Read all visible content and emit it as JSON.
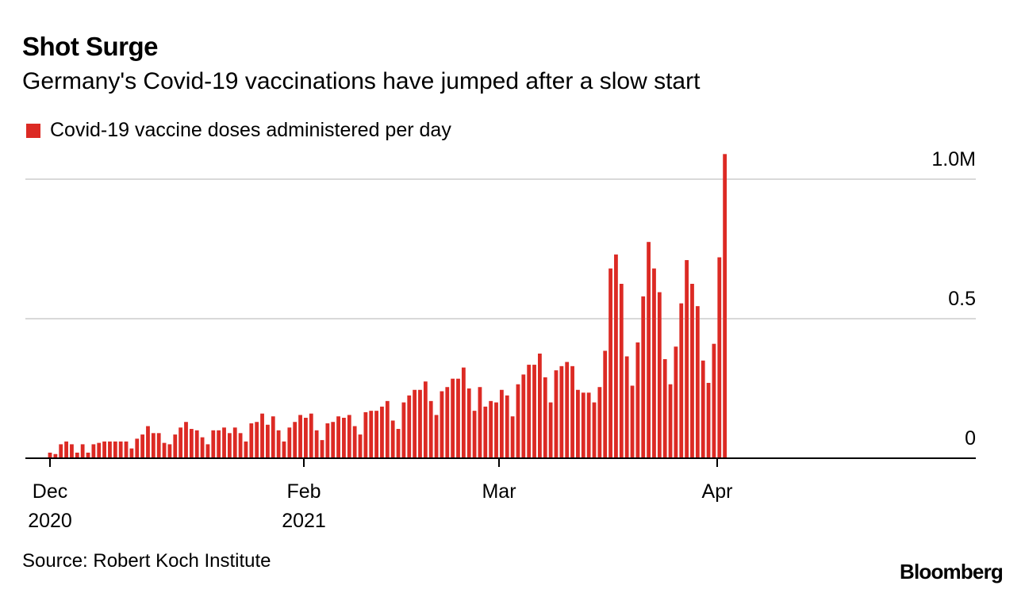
{
  "header": {
    "title": "Shot Surge",
    "subtitle": "Germany's Covid-19 vaccinations have jumped after a slow start"
  },
  "footer": {
    "source": "Source: Robert Koch Institute",
    "brand": "Bloomberg"
  },
  "colors": {
    "bar": "#dc2a24",
    "grid": "#d9d9d9",
    "axis": "#000000"
  },
  "chart_data": {
    "type": "bar",
    "title": "Shot Surge",
    "subtitle": "Germany's Covid-19 vaccinations have jumped after a slow start",
    "legend": [
      "Covid-19 vaccine doses administered per day"
    ],
    "legend_position": "top-left",
    "start_date": "2020-12-27",
    "end_date": "2021-04-28",
    "ylim": [
      0,
      1.05
    ],
    "yunit": "M",
    "yticks": [
      {
        "value": 0,
        "label": "0"
      },
      {
        "value": 0.5,
        "label": "0.5"
      },
      {
        "value": 1.0,
        "label": "1.0M"
      }
    ],
    "xticks": [
      {
        "label": "Dec",
        "sublabel": "2020",
        "date": "2020-12-01"
      },
      {
        "label": "Feb",
        "sublabel": "2021",
        "date": "2021-02-01"
      },
      {
        "label": "Mar",
        "sublabel": "",
        "date": "2021-03-01"
      },
      {
        "label": "Apr",
        "sublabel": "",
        "date": "2021-04-01"
      }
    ],
    "series": [
      {
        "name": "Covid-19 vaccine doses administered per day",
        "values": [
          0.02,
          0.015,
          0.05,
          0.06,
          0.05,
          0.02,
          0.05,
          0.02,
          0.05,
          0.055,
          0.06,
          0.06,
          0.06,
          0.06,
          0.06,
          0.035,
          0.07,
          0.085,
          0.115,
          0.09,
          0.09,
          0.055,
          0.05,
          0.085,
          0.11,
          0.13,
          0.105,
          0.1,
          0.075,
          0.05,
          0.1,
          0.1,
          0.11,
          0.09,
          0.11,
          0.09,
          0.06,
          0.125,
          0.13,
          0.16,
          0.12,
          0.15,
          0.1,
          0.06,
          0.11,
          0.13,
          0.155,
          0.145,
          0.16,
          0.1,
          0.065,
          0.125,
          0.13,
          0.15,
          0.145,
          0.155,
          0.115,
          0.085,
          0.165,
          0.17,
          0.17,
          0.185,
          0.205,
          0.135,
          0.105,
          0.2,
          0.225,
          0.245,
          0.245,
          0.275,
          0.205,
          0.155,
          0.24,
          0.255,
          0.285,
          0.285,
          0.325,
          0.25,
          0.17,
          0.255,
          0.185,
          0.205,
          0.2,
          0.245,
          0.225,
          0.15,
          0.265,
          0.3,
          0.335,
          0.335,
          0.375,
          0.29,
          0.2,
          0.315,
          0.33,
          0.345,
          0.33,
          0.245,
          0.235,
          0.235,
          0.2,
          0.255,
          0.385,
          0.68,
          0.73,
          0.625,
          0.365,
          0.26,
          0.415,
          0.58,
          0.775,
          0.68,
          0.595,
          0.355,
          0.265,
          0.4,
          0.555,
          0.71,
          0.625,
          0.545,
          0.35,
          0.27,
          0.41,
          0.72,
          1.09
        ]
      }
    ]
  }
}
